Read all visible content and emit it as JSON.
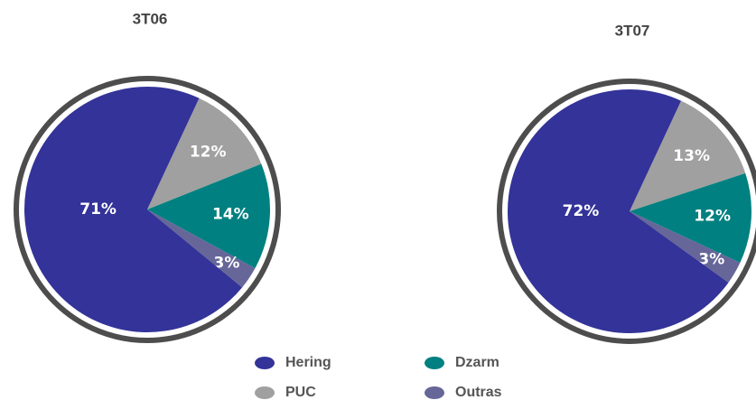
{
  "chart_data": [
    {
      "type": "pie",
      "title": "3T06",
      "categories": [
        "Hering",
        "PUC",
        "Dzarm",
        "Outras"
      ],
      "values": [
        71,
        12,
        14,
        3
      ],
      "value_labels": [
        "71%",
        "12%",
        "14%",
        "3%"
      ],
      "colors": [
        "#333399",
        "#a0a0a0",
        "#008080",
        "#666699"
      ]
    },
    {
      "type": "pie",
      "title": "3T07",
      "categories": [
        "Hering",
        "PUC",
        "Dzarm",
        "Outras"
      ],
      "values": [
        72,
        13,
        12,
        3
      ],
      "value_labels": [
        "72%",
        "13%",
        "12%",
        "3%"
      ],
      "colors": [
        "#333399",
        "#a0a0a0",
        "#008080",
        "#666699"
      ]
    }
  ]
}
